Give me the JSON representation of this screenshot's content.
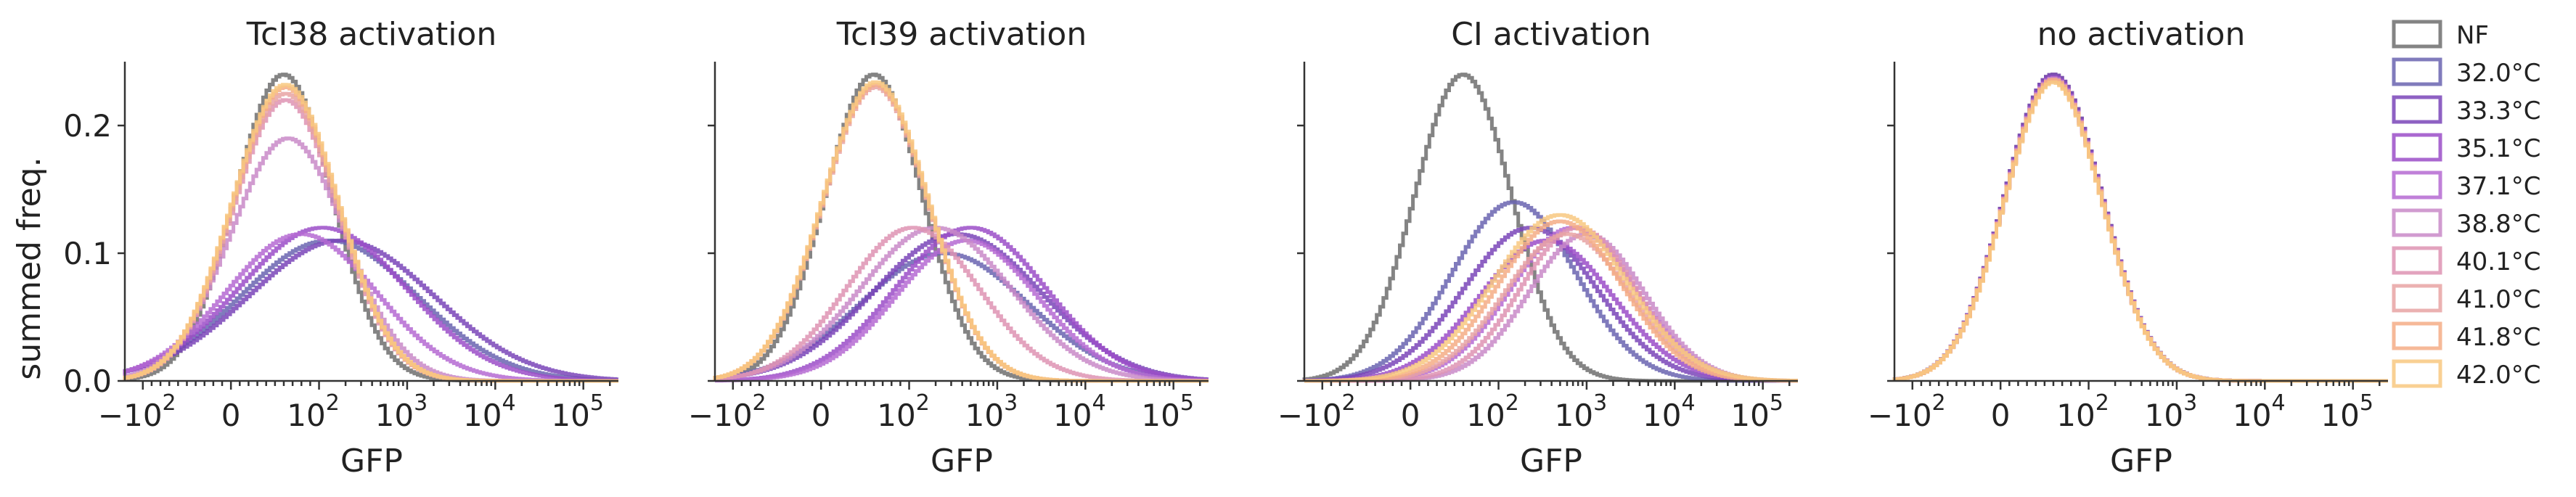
{
  "chart_data": {
    "type": "histogram-step",
    "ylabel": "summed freq.",
    "xlabel": "GFP",
    "y_ticks": [
      "0.0",
      "0.1",
      "0.2"
    ],
    "x_ticks": [
      "−10",
      "0",
      "10",
      "10",
      "10",
      "10"
    ],
    "x_tick_exps": [
      "2",
      "",
      "2",
      "3",
      "4",
      "5"
    ],
    "x_tick_values": [
      -100,
      0,
      100,
      1000,
      10000,
      100000
    ],
    "ylim": [
      0,
      0.25
    ],
    "xscale": "symlog",
    "legend_position": "right",
    "series_styles": [
      {
        "name": "NF",
        "color": "#6e6e6e"
      },
      {
        "name": "32.0°C",
        "color": "#6a64b0"
      },
      {
        "name": "33.3°C",
        "color": "#7a45b8"
      },
      {
        "name": "35.1°C",
        "color": "#9b4dc8"
      },
      {
        "name": "37.1°C",
        "color": "#b56ad2"
      },
      {
        "name": "38.8°C",
        "color": "#c98ac8"
      },
      {
        "name": "40.1°C",
        "color": "#de93b3"
      },
      {
        "name": "41.0°C",
        "color": "#e8a3a3"
      },
      {
        "name": "41.8°C",
        "color": "#f4ad86"
      },
      {
        "name": "42.0°C",
        "color": "#f8c880"
      }
    ],
    "panels": [
      {
        "title": "TcI38 activation",
        "series": [
          {
            "name": "NF",
            "peak_x": 60,
            "peak_y": 0.24,
            "width": 0.55
          },
          {
            "name": "32.0°C",
            "peak_x": 130,
            "peak_y": 0.11,
            "width": 1.0
          },
          {
            "name": "33.3°C",
            "peak_x": 180,
            "peak_y": 0.11,
            "width": 1.05
          },
          {
            "name": "35.1°C",
            "peak_x": 110,
            "peak_y": 0.12,
            "width": 0.95
          },
          {
            "name": "37.1°C",
            "peak_x": 80,
            "peak_y": 0.115,
            "width": 0.85
          },
          {
            "name": "38.8°C",
            "peak_x": 65,
            "peak_y": 0.19,
            "width": 0.65
          },
          {
            "name": "40.1°C",
            "peak_x": 62,
            "peak_y": 0.22,
            "width": 0.6
          },
          {
            "name": "41.0°C",
            "peak_x": 62,
            "peak_y": 0.225,
            "width": 0.6
          },
          {
            "name": "41.8°C",
            "peak_x": 62,
            "peak_y": 0.23,
            "width": 0.6
          },
          {
            "name": "42.0°C",
            "peak_x": 62,
            "peak_y": 0.232,
            "width": 0.6
          }
        ]
      },
      {
        "title": "TcI39 activation",
        "series": [
          {
            "name": "NF",
            "peak_x": 60,
            "peak_y": 0.24,
            "width": 0.55
          },
          {
            "name": "32.0°C",
            "peak_x": 250,
            "peak_y": 0.1,
            "width": 0.95
          },
          {
            "name": "33.3°C",
            "peak_x": 350,
            "peak_y": 0.115,
            "width": 0.95
          },
          {
            "name": "35.1°C",
            "peak_x": 500,
            "peak_y": 0.12,
            "width": 0.85
          },
          {
            "name": "37.1°C",
            "peak_x": 450,
            "peak_y": 0.11,
            "width": 0.8
          },
          {
            "name": "38.8°C",
            "peak_x": 200,
            "peak_y": 0.12,
            "width": 0.85
          },
          {
            "name": "40.1°C",
            "peak_x": 110,
            "peak_y": 0.12,
            "width": 0.75
          },
          {
            "name": "41.0°C",
            "peak_x": 62,
            "peak_y": 0.23,
            "width": 0.6
          },
          {
            "name": "41.8°C",
            "peak_x": 62,
            "peak_y": 0.232,
            "width": 0.6
          },
          {
            "name": "42.0°C",
            "peak_x": 62,
            "peak_y": 0.234,
            "width": 0.6
          }
        ]
      },
      {
        "title": "CI activation",
        "series": [
          {
            "name": "NF",
            "peak_x": 60,
            "peak_y": 0.24,
            "width": 0.55
          },
          {
            "name": "32.0°C",
            "peak_x": 150,
            "peak_y": 0.14,
            "width": 0.7
          },
          {
            "name": "33.3°C",
            "peak_x": 230,
            "peak_y": 0.12,
            "width": 0.75
          },
          {
            "name": "35.1°C",
            "peak_x": 350,
            "peak_y": 0.11,
            "width": 0.75
          },
          {
            "name": "37.1°C",
            "peak_x": 700,
            "peak_y": 0.12,
            "width": 0.7
          },
          {
            "name": "38.8°C",
            "peak_x": 1000,
            "peak_y": 0.115,
            "width": 0.65
          },
          {
            "name": "40.1°C",
            "peak_x": 800,
            "peak_y": 0.12,
            "width": 0.65
          },
          {
            "name": "41.0°C",
            "peak_x": 600,
            "peak_y": 0.115,
            "width": 0.7
          },
          {
            "name": "41.8°C",
            "peak_x": 500,
            "peak_y": 0.125,
            "width": 0.7
          },
          {
            "name": "42.0°C",
            "peak_x": 500,
            "peak_y": 0.13,
            "width": 0.75
          }
        ]
      },
      {
        "title": "no activation",
        "series": [
          {
            "name": "NF",
            "peak_x": 60,
            "peak_y": 0.24,
            "width": 0.55
          },
          {
            "name": "32.0°C",
            "peak_x": 60,
            "peak_y": 0.238,
            "width": 0.55
          },
          {
            "name": "33.3°C",
            "peak_x": 60,
            "peak_y": 0.24,
            "width": 0.55
          },
          {
            "name": "35.1°C",
            "peak_x": 60,
            "peak_y": 0.238,
            "width": 0.55
          },
          {
            "name": "37.1°C",
            "peak_x": 60,
            "peak_y": 0.236,
            "width": 0.55
          },
          {
            "name": "38.8°C",
            "peak_x": 60,
            "peak_y": 0.237,
            "width": 0.55
          },
          {
            "name": "40.1°C",
            "peak_x": 60,
            "peak_y": 0.236,
            "width": 0.55
          },
          {
            "name": "41.0°C",
            "peak_x": 60,
            "peak_y": 0.235,
            "width": 0.55
          },
          {
            "name": "41.8°C",
            "peak_x": 60,
            "peak_y": 0.236,
            "width": 0.55
          },
          {
            "name": "42.0°C",
            "peak_x": 60,
            "peak_y": 0.234,
            "width": 0.55
          }
        ]
      }
    ]
  }
}
